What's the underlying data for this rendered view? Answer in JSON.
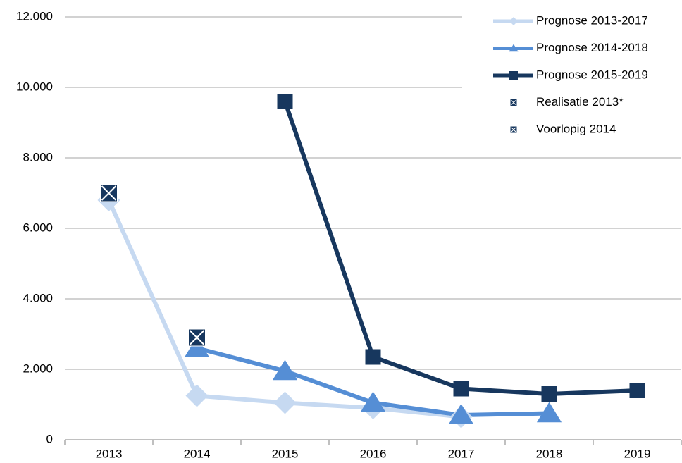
{
  "chart_data": {
    "type": "line",
    "categories": [
      "2013",
      "2014",
      "2015",
      "2016",
      "2017",
      "2018",
      "2019"
    ],
    "series": [
      {
        "name": "Prognose 2013-2017",
        "color": "#c6d9f1",
        "marker": "diamond",
        "line": true,
        "values": [
          6800,
          1250,
          1050,
          900,
          650,
          null,
          null
        ]
      },
      {
        "name": "Prognose 2014-2018",
        "color": "#558ed5",
        "marker": "triangle",
        "line": true,
        "values": [
          null,
          2600,
          1950,
          1050,
          700,
          750,
          null
        ]
      },
      {
        "name": "Prognose 2015-2019",
        "color": "#17375e",
        "marker": "square",
        "line": true,
        "values": [
          null,
          null,
          9600,
          2350,
          1450,
          1300,
          1400
        ]
      },
      {
        "name": "Realisatie 2013*",
        "color": "#17375e",
        "marker": "square-x",
        "line": false,
        "values": [
          7000,
          null,
          null,
          null,
          null,
          null,
          null
        ]
      },
      {
        "name": "Voorlopig 2014",
        "color": "#17375e",
        "marker": "square-x",
        "line": false,
        "values": [
          null,
          2900,
          null,
          null,
          null,
          null,
          null
        ]
      }
    ],
    "ylim": [
      0,
      12000
    ],
    "yticks": [
      0,
      {
        "value": 2000,
        "label": "2.000"
      },
      {
        "value": 4000,
        "label": "4.000"
      },
      {
        "value": 6000,
        "label": "6.000"
      },
      {
        "value": 8000,
        "label": "8.000"
      },
      {
        "value": 10000,
        "label": "10.000"
      },
      {
        "value": 12000,
        "label": "12.000"
      }
    ],
    "grid": true,
    "legend": "top-right"
  }
}
